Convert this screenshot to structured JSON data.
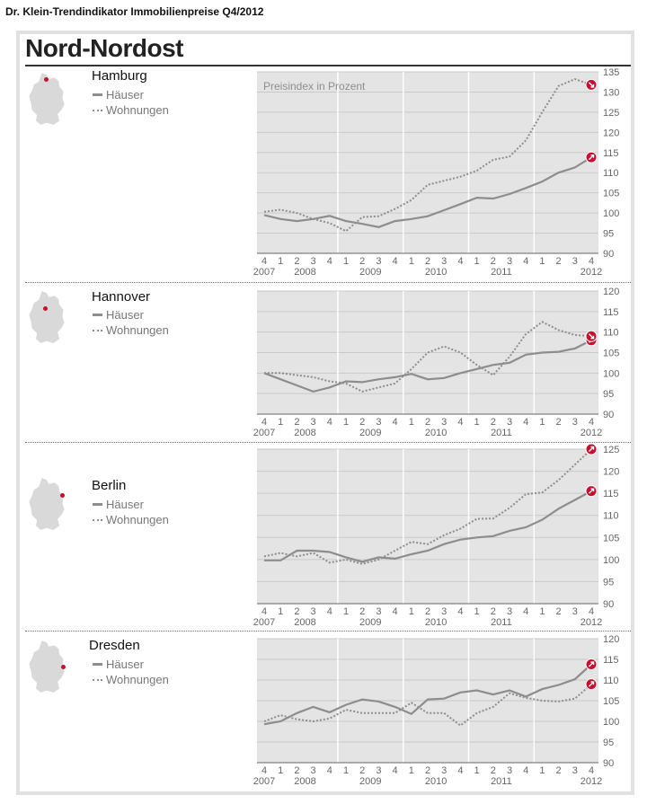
{
  "header": {
    "title": "Dr. Klein-Trendindikator Immobilienpreise Q4/2012"
  },
  "region": {
    "title": "Nord-Nordost"
  },
  "legend": {
    "houses": "Häuser",
    "apartments": "Wohnungen"
  },
  "colors": {
    "panel_bg": "#e4e4e4",
    "line": "#8d8d8f",
    "marker": "#c8102e"
  },
  "chart_data": [
    {
      "type": "line",
      "title": "Hamburg",
      "caption": "Preisindex in Prozent",
      "x_quarters": [
        "4",
        "1",
        "2",
        "3",
        "4",
        "1",
        "2",
        "3",
        "4",
        "1",
        "2",
        "3",
        "4",
        "1",
        "2",
        "3",
        "4",
        "1",
        "2",
        "3",
        "4"
      ],
      "x_years": [
        "2007",
        "2008",
        "2009",
        "2010",
        "2011",
        "2012"
      ],
      "ylim": [
        90,
        135
      ],
      "yticks": [
        90,
        95,
        100,
        105,
        110,
        115,
        120,
        125,
        130,
        135
      ],
      "series": [
        {
          "name": "Häuser",
          "style": "solid",
          "values": [
            99.5,
            98.5,
            98,
            98.5,
            99.3,
            98,
            97.3,
            96.5,
            98,
            98.5,
            99.2,
            100.7,
            102.2,
            103.8,
            103.6,
            104.7,
            106.2,
            107.8,
            110,
            111.3,
            113.8
          ]
        },
        {
          "name": "Wohnungen",
          "style": "dotted",
          "values": [
            100.3,
            100.8,
            100,
            98.5,
            97.5,
            95.5,
            99,
            99.2,
            101,
            103.2,
            107,
            108,
            109,
            110.5,
            113.2,
            114,
            118,
            125,
            131.5,
            133.2,
            131.8
          ]
        }
      ],
      "markers": [
        {
          "series": "Häuser",
          "direction": "up"
        },
        {
          "series": "Wohnungen",
          "direction": "down"
        }
      ]
    },
    {
      "type": "line",
      "title": "Hannover",
      "x_quarters": [
        "4",
        "1",
        "2",
        "3",
        "4",
        "1",
        "2",
        "3",
        "4",
        "1",
        "2",
        "3",
        "4",
        "1",
        "2",
        "3",
        "4",
        "1",
        "2",
        "3",
        "4"
      ],
      "x_years": [
        "2007",
        "2008",
        "2009",
        "2010",
        "2011",
        "2012"
      ],
      "ylim": [
        90,
        120
      ],
      "yticks": [
        90,
        95,
        100,
        105,
        110,
        115,
        120
      ],
      "series": [
        {
          "name": "Häuser",
          "style": "solid",
          "values": [
            100,
            98.5,
            97,
            95.5,
            96.5,
            98,
            97.8,
            98.5,
            99,
            99.8,
            98.5,
            98.8,
            100,
            101,
            102,
            102.5,
            104.5,
            105,
            105.2,
            106,
            108
          ]
        },
        {
          "name": "Wohnungen",
          "style": "dotted",
          "values": [
            100,
            100,
            99.5,
            99,
            98,
            97.5,
            95.5,
            96.5,
            97.5,
            101,
            105,
            106.5,
            105,
            102,
            99.5,
            104,
            109.5,
            112.5,
            110.5,
            109.3,
            109
          ]
        }
      ],
      "markers": [
        {
          "series": "Häuser",
          "direction": "up"
        },
        {
          "series": "Wohnungen",
          "direction": "down"
        }
      ]
    },
    {
      "type": "line",
      "title": "Berlin",
      "x_quarters": [
        "4",
        "1",
        "2",
        "3",
        "4",
        "1",
        "2",
        "3",
        "4",
        "1",
        "2",
        "3",
        "4",
        "1",
        "2",
        "3",
        "4",
        "1",
        "2",
        "3",
        "4"
      ],
      "x_years": [
        "2007",
        "2008",
        "2009",
        "2010",
        "2011",
        "2012"
      ],
      "ylim": [
        90,
        125
      ],
      "yticks": [
        90,
        95,
        100,
        105,
        110,
        115,
        120,
        125
      ],
      "series": [
        {
          "name": "Häuser",
          "style": "solid",
          "values": [
            99.8,
            99.8,
            102,
            102,
            101.7,
            100.5,
            99.5,
            100.5,
            100.2,
            101.2,
            102,
            103.5,
            104.5,
            105,
            105.3,
            106.5,
            107.3,
            109,
            111.5,
            113.5,
            115.5
          ]
        },
        {
          "name": "Wohnungen",
          "style": "dotted",
          "values": [
            100.7,
            101.5,
            100.7,
            101.5,
            99.3,
            100,
            99,
            100,
            102,
            104,
            103.5,
            105.5,
            107,
            109.2,
            109.3,
            111.7,
            114.8,
            115.2,
            118,
            121.5,
            125
          ]
        }
      ],
      "markers": [
        {
          "series": "Häuser",
          "direction": "up"
        },
        {
          "series": "Wohnungen",
          "direction": "up"
        }
      ]
    },
    {
      "type": "line",
      "title": "Dresden",
      "x_quarters": [
        "4",
        "1",
        "2",
        "3",
        "4",
        "1",
        "2",
        "3",
        "4",
        "1",
        "2",
        "3",
        "4",
        "1",
        "2",
        "3",
        "4",
        "1",
        "2",
        "3",
        "4"
      ],
      "x_years": [
        "2007",
        "2008",
        "2009",
        "2010",
        "2011",
        "2012"
      ],
      "ylim": [
        90,
        120
      ],
      "yticks": [
        90,
        95,
        100,
        105,
        110,
        115,
        120
      ],
      "series": [
        {
          "name": "Häuser",
          "style": "solid",
          "values": [
            99.3,
            100,
            102,
            103.5,
            102.2,
            104,
            105.3,
            104.8,
            103.5,
            101.8,
            105.3,
            105.5,
            107,
            107.5,
            106.5,
            107.5,
            106,
            107.8,
            108.8,
            110.2,
            113.8
          ]
        },
        {
          "name": "Wohnungen",
          "style": "dotted",
          "values": [
            100,
            101.5,
            100.5,
            100,
            100.7,
            102.8,
            102,
            102,
            102,
            104.5,
            102,
            102,
            99,
            102,
            103.5,
            106.8,
            105.7,
            105,
            104.8,
            105.5,
            109
          ]
        }
      ],
      "markers": [
        {
          "series": "Häuser",
          "direction": "up"
        },
        {
          "series": "Wohnungen",
          "direction": "up"
        }
      ]
    }
  ]
}
